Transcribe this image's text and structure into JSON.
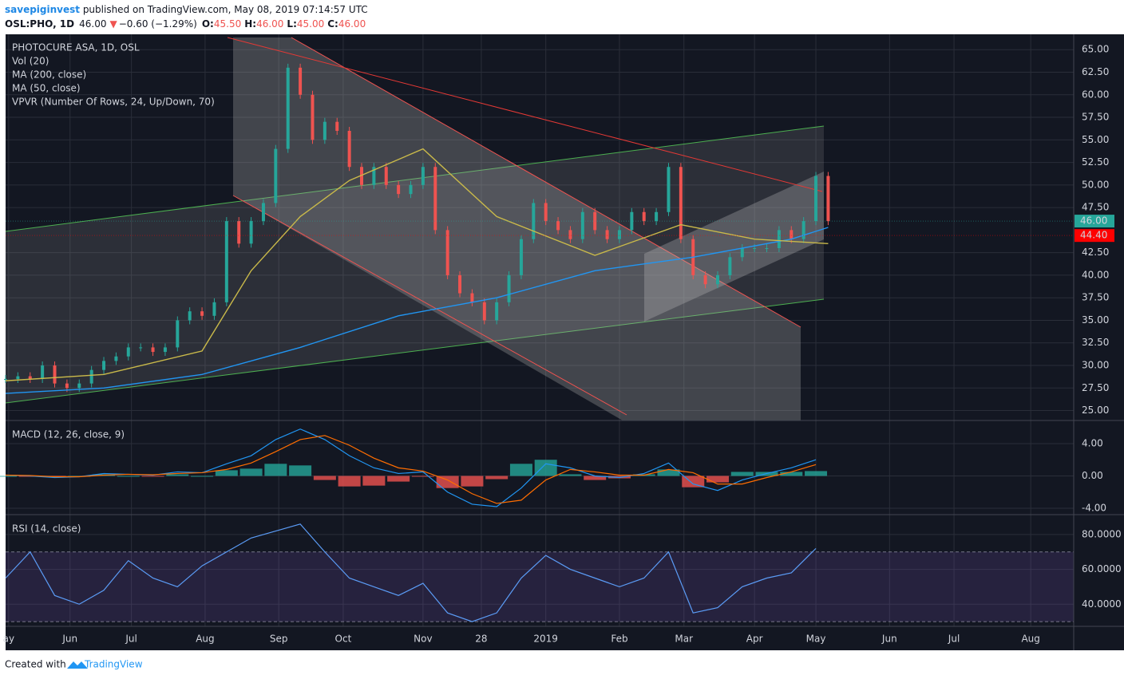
{
  "header": {
    "author": "savepiginvest",
    "published": " published on TradingView.com, May 08, 2019 07:14:57 UTC",
    "symbol": "OSL:PHO, 1D",
    "last": "46.00",
    "arrow": "▼",
    "change": "−0.60 (−1.29%)",
    "o_label": "O:",
    "o": "45.50",
    "h_label": "H:",
    "h": "46.00",
    "l_label": "L:",
    "l": "45.00",
    "c_label": "C:",
    "c": "46.00"
  },
  "footer": {
    "text": "Created with",
    "brand": "TradingView"
  },
  "chart_data": [
    {
      "type": "candlestick",
      "title": "PHOTOCURE ASA, 1D, OSL",
      "indicators": [
        "Vol (20)",
        "VPVR (Number Of Rows, 24, Up/Down, 70)"
      ],
      "xlim": [
        0,
        348
      ],
      "ylim": [
        23.9,
        66.7
      ],
      "yticks": [
        {
          "value": 25,
          "label": "25.00"
        },
        {
          "value": 27.5,
          "label": "27.50"
        },
        {
          "value": 30,
          "label": "30.00"
        },
        {
          "value": 32.5,
          "label": "32.50"
        },
        {
          "value": 35,
          "label": "35.00"
        },
        {
          "value": 37.5,
          "label": "37.50"
        },
        {
          "value": 40,
          "label": "40.00"
        },
        {
          "value": 42.5,
          "label": "42.50"
        },
        {
          "value": 47.5,
          "label": "47.50"
        },
        {
          "value": 50,
          "label": "50.00"
        },
        {
          "value": 52.5,
          "label": "52.50"
        },
        {
          "value": 55,
          "label": "55.00"
        },
        {
          "value": 57.5,
          "label": "57.50"
        },
        {
          "value": 60,
          "label": "60.00"
        },
        {
          "value": 62.5,
          "label": "62.50"
        },
        {
          "value": 65,
          "label": "65.00"
        }
      ],
      "up_color": "#26a69a",
      "down_color": "#ef5350",
      "x": [
        0,
        4,
        8,
        12,
        16,
        20,
        24,
        28,
        32,
        36,
        40,
        44,
        48,
        52,
        56,
        60,
        64,
        68,
        72,
        76,
        80,
        84,
        88,
        92,
        96,
        100,
        104,
        108,
        112,
        116,
        120,
        124,
        128,
        132,
        136,
        140,
        144,
        148,
        152,
        156,
        160,
        164,
        168,
        172,
        176,
        180,
        184,
        188,
        192,
        196,
        200,
        204,
        208,
        212,
        216,
        220,
        224,
        228,
        232,
        236,
        240,
        244,
        248,
        252,
        256,
        260,
        264,
        268
      ],
      "close": [
        28.5,
        28.8,
        28.5,
        30,
        28,
        27.5,
        28,
        29.5,
        30.5,
        31,
        32,
        32,
        31.5,
        32,
        35,
        36,
        35.5,
        37,
        46,
        43.5,
        46,
        48,
        54,
        63,
        60,
        55,
        57,
        56,
        52,
        50,
        52,
        50,
        49,
        50,
        52,
        45,
        40,
        38,
        37,
        35,
        37,
        40,
        44,
        48,
        46,
        45,
        44,
        47,
        45,
        44,
        45,
        47,
        46,
        47,
        52,
        44,
        40,
        39,
        40,
        42,
        43,
        43,
        43,
        45,
        44,
        46,
        51,
        46
      ],
      "ma_lines": [
        {
          "name": "MA (200, close)",
          "color": "#2196f3",
          "x": [
            0,
            32,
            64,
            96,
            128,
            160,
            192,
            224,
            256,
            268
          ],
          "values": [
            26.9,
            27.5,
            29,
            32,
            35.5,
            37.5,
            40.5,
            42,
            44,
            45.3
          ]
        },
        {
          "name": "MA (50, close)",
          "color": "#c9b94a",
          "x": [
            0,
            32,
            64,
            80,
            96,
            112,
            136,
            160,
            192,
            220,
            244,
            268
          ],
          "values": [
            28.3,
            29,
            31.6,
            40.5,
            46.5,
            50.5,
            54,
            46.5,
            42.2,
            45.6,
            44,
            43.5
          ]
        }
      ],
      "price_labels": [
        {
          "value": 46,
          "label": "46.00",
          "color": "#26a69a"
        },
        {
          "value": 44.4,
          "label": "44.40",
          "color": "#ff0000"
        }
      ]
    },
    {
      "type": "line",
      "title": "MACD (12, 26, close, 9)",
      "xlim": [
        0,
        348
      ],
      "ylim": [
        -4.79,
        6.86
      ],
      "yticks": [
        {
          "value": -4,
          "label": "-4.00"
        },
        {
          "value": 0,
          "label": "0.00"
        },
        {
          "value": 4,
          "label": "4.00"
        }
      ],
      "x": [
        0,
        8,
        16,
        24,
        32,
        40,
        48,
        56,
        64,
        72,
        80,
        88,
        96,
        104,
        112,
        120,
        128,
        136,
        144,
        152,
        160,
        168,
        176,
        184,
        192,
        200,
        208,
        216,
        224,
        232,
        240,
        248,
        256,
        264
      ],
      "series": [
        {
          "color": "#2196f3",
          "values": [
            0.1,
            0,
            -0.2,
            -0.1,
            0.3,
            0.2,
            0.1,
            0.5,
            0.4,
            1.5,
            2.5,
            4.5,
            5.8,
            4.5,
            2.5,
            1,
            0.3,
            0.5,
            -2,
            -3.5,
            -3.8,
            -1.5,
            1.5,
            1,
            0,
            -0.2,
            0.3,
            1.6,
            -1,
            -1.8,
            -0.5,
            0.3,
            1,
            2
          ]
        },
        {
          "color": "#ff6d00",
          "values": [
            0.1,
            0.05,
            -0.1,
            -0.1,
            0.1,
            0.2,
            0.15,
            0.3,
            0.4,
            0.8,
            1.6,
            3,
            4.5,
            5,
            3.8,
            2.2,
            1,
            0.6,
            -0.5,
            -2.2,
            -3.4,
            -3,
            -0.5,
            0.8,
            0.5,
            0.1,
            0.1,
            0.8,
            0.4,
            -1,
            -1,
            -0.2,
            0.5,
            1.4
          ]
        }
      ],
      "histogram": {
        "up_color": "#26a69a",
        "down_color": "#ef5350",
        "values": [
          0,
          -0.05,
          -0.1,
          0,
          0.2,
          0,
          -0.05,
          0.2,
          0,
          0.7,
          0.9,
          1.5,
          1.3,
          -0.5,
          -1.3,
          -1.2,
          -0.7,
          -0.1,
          -1.5,
          -1.3,
          -0.4,
          1.5,
          2,
          0.2,
          -0.5,
          -0.3,
          0.2,
          0.8,
          -1.4,
          -0.8,
          0.5,
          0.5,
          0.5,
          0.6
        ]
      }
    },
    {
      "type": "line",
      "title": "RSI (14, close)",
      "xlim": [
        0,
        348
      ],
      "ylim": [
        27.3,
        91.4
      ],
      "yticks": [
        {
          "value": 40,
          "label": "40.0000"
        },
        {
          "value": 60,
          "label": "60.0000"
        },
        {
          "value": 80,
          "label": "80.0000"
        }
      ],
      "bands": [
        30,
        70
      ],
      "x": [
        0,
        8,
        16,
        24,
        32,
        40,
        48,
        56,
        64,
        72,
        80,
        88,
        96,
        104,
        112,
        120,
        128,
        136,
        144,
        152,
        160,
        168,
        176,
        184,
        192,
        200,
        208,
        216,
        224,
        232,
        240,
        248,
        256,
        264
      ],
      "series": [
        {
          "color": "#5b9cf6",
          "values": [
            55,
            70,
            45,
            40,
            48,
            65,
            55,
            50,
            62,
            70,
            78,
            82,
            86,
            70,
            55,
            50,
            45,
            52,
            35,
            30,
            35,
            55,
            68,
            60,
            55,
            50,
            55,
            70,
            35,
            38,
            50,
            55,
            58,
            72
          ]
        }
      ],
      "xticks": [
        {
          "value": 1,
          "label": "ay"
        },
        {
          "value": 21,
          "label": "Jun"
        },
        {
          "value": 41,
          "label": "Jul"
        },
        {
          "value": 65,
          "label": "Aug"
        },
        {
          "value": 89,
          "label": "Sep"
        },
        {
          "value": 110,
          "label": "Oct"
        },
        {
          "value": 136,
          "label": "Nov"
        },
        {
          "value": 155,
          "label": "28"
        },
        {
          "value": 176,
          "label": "2019"
        },
        {
          "value": 200,
          "label": "Feb"
        },
        {
          "value": 221,
          "label": "Mar"
        },
        {
          "value": 244,
          "label": "Apr"
        },
        {
          "value": 264,
          "label": "May"
        },
        {
          "value": 288,
          "label": "Jun"
        },
        {
          "value": 309,
          "label": "Jul"
        },
        {
          "value": 334,
          "label": "Aug"
        }
      ]
    }
  ]
}
